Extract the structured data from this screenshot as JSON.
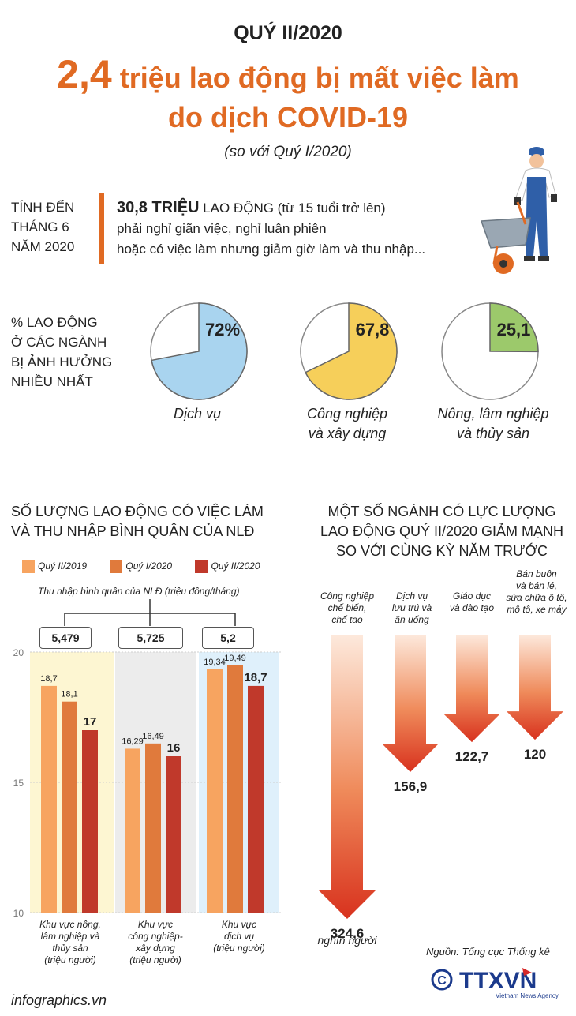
{
  "header": {
    "quarter": "QUÝ II/2020",
    "headline_number": "2,4",
    "headline_rest": "triệu lao động bị mất việc làm",
    "headline_line2": "do dịch COVID-19",
    "comparison": "(so với Quý I/2020)"
  },
  "summary": {
    "as_of": [
      "TÍNH ĐẾN",
      "THÁNG 6",
      "NĂM 2020"
    ],
    "highlight": "30,8 TRIỆU",
    "line1_rest": "LAO ĐỘNG (từ 15 tuổi trở lên)",
    "line2": "phải nghỉ giãn việc, nghỉ luân phiên",
    "line3": "hoặc có việc làm nhưng giảm giờ làm và thu nhập..."
  },
  "pies": {
    "label": [
      "% LAO ĐỘNG",
      "Ở CÁC NGÀNH",
      "BỊ ẢNH HƯỞNG",
      "NHIỀU NHẤT"
    ],
    "items": [
      {
        "value_text": "72%",
        "value": 72,
        "caption": [
          "Dịch vụ"
        ],
        "color": "#a9d4ef"
      },
      {
        "value_text": "67,8",
        "value": 67.8,
        "caption": [
          "Công nghiệp",
          "và xây dựng"
        ],
        "color": "#f6cf5a"
      },
      {
        "value_text": "25,1",
        "value": 25.1,
        "caption": [
          "Nông, lâm nghiệp",
          "và thủy sản"
        ],
        "color": "#9cc96b"
      }
    ]
  },
  "left_section": {
    "title": [
      "SỐ LƯỢNG LAO ĐỘNG CÓ VIỆC LÀM",
      "VÀ THU NHẬP BÌNH QUÂN CỦA NLĐ"
    ],
    "legend": [
      "Quý II/2019",
      "Quý I/2020",
      "Quý II/2020"
    ],
    "income_caption": "Thu nhập bình quân của NLĐ (triệu đồng/tháng)",
    "income_values": [
      "5,479",
      "5,725",
      "5,2"
    ]
  },
  "chart_data": [
    {
      "type": "bar",
      "categories": [
        "Khu vực nông, lâm nghiệp và thủy sản (triệu người)",
        "Khu vực công nghiệp-xây dựng (triệu người)",
        "Khu vực dịch vụ (triệu người)"
      ],
      "category_lines": [
        [
          "Khu vực nông,",
          "lâm nghiệp và",
          "thủy sản",
          "(triệu người)"
        ],
        [
          "Khu vực",
          "công nghiệp-",
          "xây dựng",
          "(triệu người)"
        ],
        [
          "Khu vực",
          "dịch vụ",
          "(triệu người)"
        ]
      ],
      "series": [
        {
          "name": "Quý II/2019",
          "values": [
            18.7,
            16.29,
            19.34
          ],
          "labels": [
            "18,7",
            "16,29",
            "19,34"
          ],
          "color": "#f7a460"
        },
        {
          "name": "Quý I/2020",
          "values": [
            18.1,
            16.49,
            19.49
          ],
          "labels": [
            "18,1",
            "16,49",
            "19,49"
          ],
          "color": "#e07a3c"
        },
        {
          "name": "Quý II/2020",
          "values": [
            17,
            16,
            18.7
          ],
          "labels": [
            "17",
            "16",
            "18,7"
          ],
          "color": "#c0392b"
        }
      ],
      "yticks": [
        "10",
        "15",
        "20"
      ],
      "ylim": [
        10,
        20
      ]
    },
    {
      "type": "bar",
      "title": [
        "MỘT SỐ NGÀNH CÓ LỰC LƯỢNG",
        "LAO ĐỘNG QUÝ II/2020 GIẢM MẠNH",
        "SO VỚI CÙNG KỲ NĂM TRƯỚC"
      ],
      "categories": [
        "Công nghiệp chế biến, chế tạo",
        "Dịch vụ lưu trú và ăn uống",
        "Giáo dục và đào tạo",
        "Bán buôn và bán lẻ, sửa chữa ô tô, mô tô, xe máy"
      ],
      "category_lines": [
        [
          "Công nghiệp",
          "chế biến,",
          "chế tạo"
        ],
        [
          "Dịch vụ",
          "lưu trú và",
          "ăn uống"
        ],
        [
          "Giáo dục",
          "và đào tạo"
        ],
        [
          "Bán buôn",
          "và bán lẻ,",
          "sửa chữa ô tô,",
          "mô tô, xe máy"
        ]
      ],
      "values": [
        324.6,
        156.9,
        122.7,
        120
      ],
      "value_labels": [
        "324,6",
        "156,9",
        "122,7",
        "120"
      ],
      "unit": "nghìn người"
    }
  ],
  "footer": {
    "source": "Nguồn: Tổng cục Thống kê",
    "site": "infographics.vn",
    "agency": "TTXVN",
    "agency_sub": "Vietnam News Agency"
  }
}
